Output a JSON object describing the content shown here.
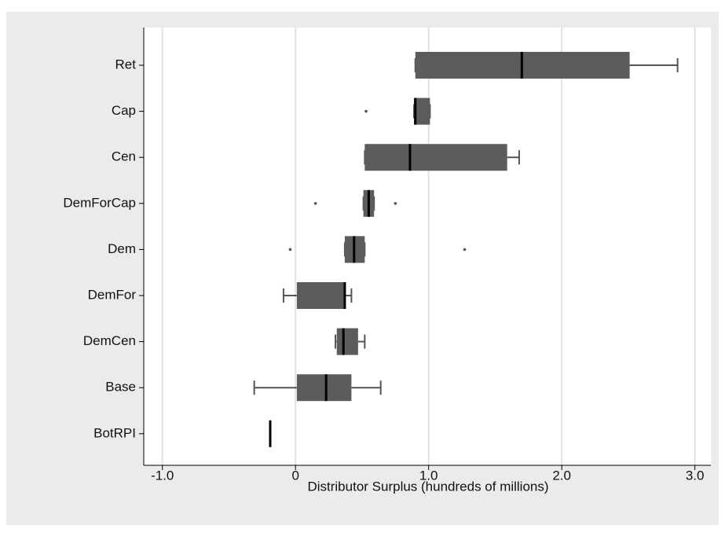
{
  "chart_data": {
    "type": "box",
    "x_label": "Distributor Surplus (hundreds of millions)",
    "categories": [
      "Ret",
      "Cap",
      "Cen",
      "DemForCap",
      "Dem",
      "DemFor",
      "DemCen",
      "Base",
      "BotRPI"
    ],
    "color": "#5c5c5c",
    "boxes": [
      {
        "min": 0.9,
        "q1": 0.9,
        "median": 1.7,
        "q3": 2.51,
        "max": 2.87,
        "outliers": []
      },
      {
        "min": 0.89,
        "q1": 0.89,
        "median": 0.9,
        "q3": 1.01,
        "max": 1.01,
        "outliers": [
          0.53
        ]
      },
      {
        "min": 0.52,
        "q1": 0.52,
        "median": 0.86,
        "q3": 1.59,
        "max": 1.68,
        "outliers": []
      },
      {
        "min": 0.51,
        "q1": 0.51,
        "median": 0.55,
        "q3": 0.59,
        "max": 0.59,
        "outliers": [
          0.15,
          0.75
        ]
      },
      {
        "min": 0.37,
        "q1": 0.37,
        "median": 0.44,
        "q3": 0.52,
        "max": 0.52,
        "outliers": [
          -0.04,
          1.27
        ]
      },
      {
        "min": -0.09,
        "q1": 0.01,
        "median": 0.37,
        "q3": 0.37,
        "max": 0.42,
        "outliers": []
      },
      {
        "min": 0.3,
        "q1": 0.31,
        "median": 0.36,
        "q3": 0.47,
        "max": 0.52,
        "outliers": []
      },
      {
        "min": -0.31,
        "q1": 0.01,
        "median": 0.23,
        "q3": 0.42,
        "max": 0.64,
        "outliers": []
      },
      {
        "min": -0.19,
        "q1": -0.19,
        "median": -0.19,
        "q3": -0.19,
        "max": -0.19,
        "outliers": []
      }
    ],
    "xlim": [
      -1.14,
      3.12
    ],
    "xticks": [
      {
        "value": -1,
        "label": "-1.0"
      },
      0,
      {
        "value": 1,
        "label": "1.0"
      },
      {
        "value": 2,
        "label": "2.0"
      },
      {
        "value": 3,
        "label": "3.0"
      }
    ],
    "grid": true
  }
}
